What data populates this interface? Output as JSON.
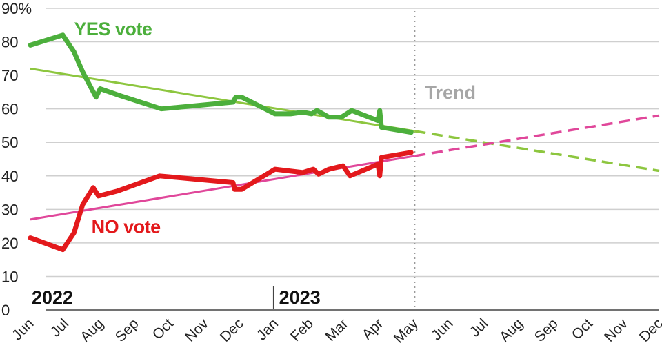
{
  "chart_data": {
    "type": "line",
    "y_unit_suffix": "%",
    "ylim": [
      0,
      90
    ],
    "y_ticks": [
      0,
      10,
      20,
      30,
      40,
      50,
      60,
      70,
      80,
      90
    ],
    "grid": true,
    "x_months": [
      "Jun",
      "Jul",
      "Aug",
      "Sep",
      "Oct",
      "Nov",
      "Dec",
      "Jan",
      "Feb",
      "Mar",
      "Apr",
      "May",
      "Jun",
      "Jul",
      "Aug",
      "Sep",
      "Oct",
      "Nov",
      "Dec"
    ],
    "x_range": [
      0,
      18
    ],
    "year_labels": [
      {
        "label": "2022",
        "at": 0
      },
      {
        "label": "2023",
        "at": 7
      }
    ],
    "trend_start": 11,
    "annotations": [
      {
        "text": "Trend",
        "x": 11.3,
        "y": 63,
        "color": "#a6a6a6"
      }
    ],
    "series": [
      {
        "name": "YES vote",
        "color": "#4caf3c",
        "trend_color": "#8dc63f",
        "label_at": {
          "x": 1.25,
          "y": 82
        },
        "x": [
          0,
          0.93,
          1.25,
          1.5,
          1.88,
          2.0,
          2.55,
          3.75,
          5.8,
          5.88,
          6.05,
          7.0,
          7.45,
          7.8,
          8.05,
          8.2,
          8.55,
          8.9,
          9.2,
          9.95,
          10.0,
          10.05,
          10.9
        ],
        "values": [
          79,
          82,
          77,
          71,
          63.5,
          66,
          64,
          60,
          62,
          63.5,
          63.5,
          58.5,
          58.5,
          59,
          58.5,
          59.5,
          57.5,
          57.5,
          59.5,
          56.5,
          59.5,
          54.5,
          53
        ],
        "trend": {
          "x": [
            0,
            18
          ],
          "values": [
            72,
            41.5
          ]
        }
      },
      {
        "name": "NO vote",
        "color": "#e3191c",
        "trend_color": "#e0479a",
        "label_at": {
          "x": 1.75,
          "y": 23
        },
        "x": [
          0,
          0.93,
          1.25,
          1.5,
          1.8,
          1.95,
          2.5,
          3.7,
          5.8,
          5.85,
          6.05,
          7.0,
          7.4,
          7.8,
          8.1,
          8.25,
          8.55,
          8.95,
          9.15,
          9.95,
          10.0,
          10.05,
          10.9
        ],
        "values": [
          21.5,
          18,
          23,
          31.5,
          36.5,
          34,
          35.5,
          40,
          38,
          36,
          36,
          42,
          41.5,
          41,
          42,
          40.5,
          42,
          43,
          40,
          43.5,
          40,
          45.5,
          47
        ],
        "trend": {
          "x": [
            0,
            18
          ],
          "values": [
            27,
            58
          ]
        }
      }
    ]
  }
}
